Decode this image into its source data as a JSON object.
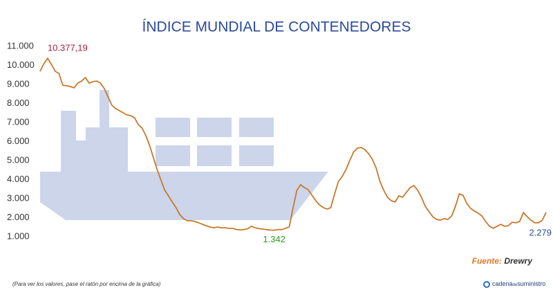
{
  "chart_data": {
    "type": "line",
    "title": "ÍNDICE MUNDIAL DE CONTENEDORES",
    "color": "#c8782a",
    "ylim": [
      1000,
      11000
    ],
    "yticks": [
      {
        "value": 1000,
        "label": "1.000"
      },
      {
        "value": 2000,
        "label": "2.000"
      },
      {
        "value": 3000,
        "label": "3.000"
      },
      {
        "value": 4000,
        "label": "4.000"
      },
      {
        "value": 5000,
        "label": "5.000"
      },
      {
        "value": 6000,
        "label": "6.000"
      },
      {
        "value": 7000,
        "label": "7.000"
      },
      {
        "value": 8000,
        "label": "8.000"
      },
      {
        "value": 9000,
        "label": "9.000"
      },
      {
        "value": 10000,
        "label": "10.000"
      },
      {
        "value": 11000,
        "label": "11.000"
      }
    ],
    "values": [
      9690,
      10090,
      10377.19,
      10050,
      9690,
      9580,
      8960,
      8930,
      8890,
      8820,
      9070,
      9180,
      9360,
      9070,
      9150,
      9180,
      9070,
      8780,
      8350,
      7910,
      7730,
      7620,
      7510,
      7400,
      7360,
      7250,
      6890,
      6710,
      6310,
      5800,
      5150,
      4530,
      3980,
      3440,
      3150,
      2820,
      2530,
      2160,
      1950,
      1840,
      1840,
      1800,
      1730,
      1650,
      1580,
      1510,
      1470,
      1510,
      1470,
      1470,
      1440,
      1440,
      1380,
      1360,
      1380,
      1420,
      1550,
      1470,
      1420,
      1400,
      1370,
      1350,
      1342,
      1380,
      1370,
      1440,
      1520,
      2530,
      3440,
      3730,
      3580,
      3470,
      3180,
      2890,
      2670,
      2530,
      2450,
      2530,
      3250,
      3910,
      4160,
      4530,
      5000,
      5440,
      5650,
      5690,
      5580,
      5360,
      5070,
      4600,
      3910,
      3440,
      3070,
      2890,
      2820,
      3150,
      3070,
      3330,
      3580,
      3690,
      3440,
      3070,
      2600,
      2310,
      2050,
      1910,
      1870,
      1950,
      1910,
      2090,
      2600,
      3250,
      3180,
      2750,
      2490,
      2350,
      2240,
      2090,
      1800,
      1550,
      1440,
      1550,
      1650,
      1550,
      1580,
      1760,
      1730,
      1800,
      2270,
      2050,
      1870,
      1730,
      1730,
      1870,
      2279
    ],
    "value_labels": [
      null,
      null,
      "10.377,19",
      null,
      null,
      null,
      null,
      null,
      null,
      null,
      null,
      null,
      null,
      null,
      null,
      null,
      null,
      null,
      null,
      null,
      null,
      null,
      null,
      null,
      null,
      null,
      null,
      null,
      null,
      null,
      null,
      null,
      null,
      null,
      null,
      null,
      null,
      null,
      null,
      null,
      null,
      null,
      null,
      null,
      null,
      null,
      null,
      null,
      null,
      null,
      null,
      null,
      null,
      null,
      null,
      null,
      null,
      null,
      null,
      null,
      null,
      null,
      "1.342",
      null,
      null,
      null,
      null,
      null,
      null,
      null,
      null,
      null,
      null,
      null,
      null,
      null,
      null,
      null,
      null,
      null,
      null,
      null,
      null,
      null,
      null,
      null,
      null,
      null,
      null,
      null,
      null,
      null,
      null,
      null,
      null,
      null,
      null,
      null,
      null,
      null,
      null,
      null,
      null,
      null,
      null,
      null,
      null,
      null,
      null,
      null,
      null,
      null,
      null,
      null,
      null,
      null,
      null,
      null,
      null,
      null,
      null,
      null,
      null,
      null,
      null,
      null,
      null,
      null,
      null,
      null,
      null,
      null,
      null,
      null,
      "2.279"
    ],
    "value_label_colors": [
      "#b0193b",
      "#2e9a1f",
      "#1f4e9c"
    ]
  },
  "footer": {
    "source_label": "Fuente:",
    "source": "Drewry",
    "note": "(Para ver los valores, pase el ratón por encima de la gráfica)",
    "logo": [
      "cadena",
      "de",
      "suministro"
    ]
  }
}
